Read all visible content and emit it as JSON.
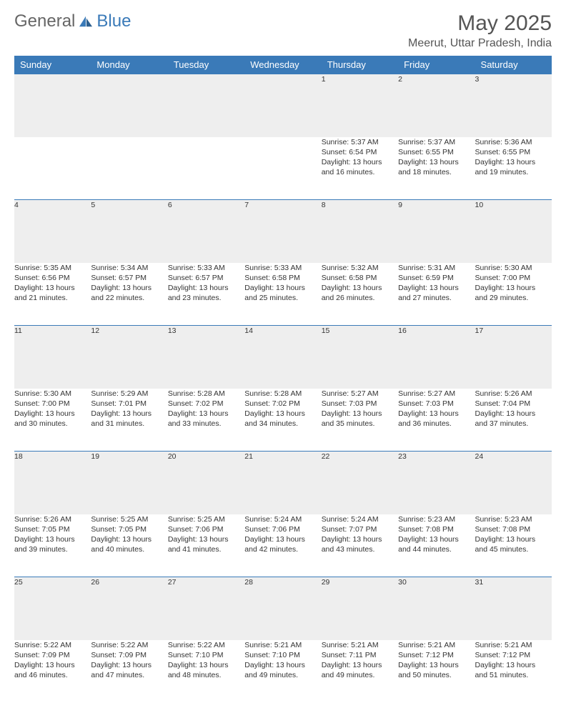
{
  "logo": {
    "general": "General",
    "blue": "Blue"
  },
  "title": "May 2025",
  "location": "Meerut, Uttar Pradesh, India",
  "colors": {
    "header_bg": "#3a7ab8",
    "daynum_bg": "#eeeeee",
    "border": "#3a7ab8",
    "text": "#333333"
  },
  "weekdays": [
    "Sunday",
    "Monday",
    "Tuesday",
    "Wednesday",
    "Thursday",
    "Friday",
    "Saturday"
  ],
  "weeks": [
    [
      null,
      null,
      null,
      null,
      {
        "d": "1",
        "sr": "Sunrise: 5:37 AM",
        "ss": "Sunset: 6:54 PM",
        "dl1": "Daylight: 13 hours",
        "dl2": "and 16 minutes."
      },
      {
        "d": "2",
        "sr": "Sunrise: 5:37 AM",
        "ss": "Sunset: 6:55 PM",
        "dl1": "Daylight: 13 hours",
        "dl2": "and 18 minutes."
      },
      {
        "d": "3",
        "sr": "Sunrise: 5:36 AM",
        "ss": "Sunset: 6:55 PM",
        "dl1": "Daylight: 13 hours",
        "dl2": "and 19 minutes."
      }
    ],
    [
      {
        "d": "4",
        "sr": "Sunrise: 5:35 AM",
        "ss": "Sunset: 6:56 PM",
        "dl1": "Daylight: 13 hours",
        "dl2": "and 21 minutes."
      },
      {
        "d": "5",
        "sr": "Sunrise: 5:34 AM",
        "ss": "Sunset: 6:57 PM",
        "dl1": "Daylight: 13 hours",
        "dl2": "and 22 minutes."
      },
      {
        "d": "6",
        "sr": "Sunrise: 5:33 AM",
        "ss": "Sunset: 6:57 PM",
        "dl1": "Daylight: 13 hours",
        "dl2": "and 23 minutes."
      },
      {
        "d": "7",
        "sr": "Sunrise: 5:33 AM",
        "ss": "Sunset: 6:58 PM",
        "dl1": "Daylight: 13 hours",
        "dl2": "and 25 minutes."
      },
      {
        "d": "8",
        "sr": "Sunrise: 5:32 AM",
        "ss": "Sunset: 6:58 PM",
        "dl1": "Daylight: 13 hours",
        "dl2": "and 26 minutes."
      },
      {
        "d": "9",
        "sr": "Sunrise: 5:31 AM",
        "ss": "Sunset: 6:59 PM",
        "dl1": "Daylight: 13 hours",
        "dl2": "and 27 minutes."
      },
      {
        "d": "10",
        "sr": "Sunrise: 5:30 AM",
        "ss": "Sunset: 7:00 PM",
        "dl1": "Daylight: 13 hours",
        "dl2": "and 29 minutes."
      }
    ],
    [
      {
        "d": "11",
        "sr": "Sunrise: 5:30 AM",
        "ss": "Sunset: 7:00 PM",
        "dl1": "Daylight: 13 hours",
        "dl2": "and 30 minutes."
      },
      {
        "d": "12",
        "sr": "Sunrise: 5:29 AM",
        "ss": "Sunset: 7:01 PM",
        "dl1": "Daylight: 13 hours",
        "dl2": "and 31 minutes."
      },
      {
        "d": "13",
        "sr": "Sunrise: 5:28 AM",
        "ss": "Sunset: 7:02 PM",
        "dl1": "Daylight: 13 hours",
        "dl2": "and 33 minutes."
      },
      {
        "d": "14",
        "sr": "Sunrise: 5:28 AM",
        "ss": "Sunset: 7:02 PM",
        "dl1": "Daylight: 13 hours",
        "dl2": "and 34 minutes."
      },
      {
        "d": "15",
        "sr": "Sunrise: 5:27 AM",
        "ss": "Sunset: 7:03 PM",
        "dl1": "Daylight: 13 hours",
        "dl2": "and 35 minutes."
      },
      {
        "d": "16",
        "sr": "Sunrise: 5:27 AM",
        "ss": "Sunset: 7:03 PM",
        "dl1": "Daylight: 13 hours",
        "dl2": "and 36 minutes."
      },
      {
        "d": "17",
        "sr": "Sunrise: 5:26 AM",
        "ss": "Sunset: 7:04 PM",
        "dl1": "Daylight: 13 hours",
        "dl2": "and 37 minutes."
      }
    ],
    [
      {
        "d": "18",
        "sr": "Sunrise: 5:26 AM",
        "ss": "Sunset: 7:05 PM",
        "dl1": "Daylight: 13 hours",
        "dl2": "and 39 minutes."
      },
      {
        "d": "19",
        "sr": "Sunrise: 5:25 AM",
        "ss": "Sunset: 7:05 PM",
        "dl1": "Daylight: 13 hours",
        "dl2": "and 40 minutes."
      },
      {
        "d": "20",
        "sr": "Sunrise: 5:25 AM",
        "ss": "Sunset: 7:06 PM",
        "dl1": "Daylight: 13 hours",
        "dl2": "and 41 minutes."
      },
      {
        "d": "21",
        "sr": "Sunrise: 5:24 AM",
        "ss": "Sunset: 7:06 PM",
        "dl1": "Daylight: 13 hours",
        "dl2": "and 42 minutes."
      },
      {
        "d": "22",
        "sr": "Sunrise: 5:24 AM",
        "ss": "Sunset: 7:07 PM",
        "dl1": "Daylight: 13 hours",
        "dl2": "and 43 minutes."
      },
      {
        "d": "23",
        "sr": "Sunrise: 5:23 AM",
        "ss": "Sunset: 7:08 PM",
        "dl1": "Daylight: 13 hours",
        "dl2": "and 44 minutes."
      },
      {
        "d": "24",
        "sr": "Sunrise: 5:23 AM",
        "ss": "Sunset: 7:08 PM",
        "dl1": "Daylight: 13 hours",
        "dl2": "and 45 minutes."
      }
    ],
    [
      {
        "d": "25",
        "sr": "Sunrise: 5:22 AM",
        "ss": "Sunset: 7:09 PM",
        "dl1": "Daylight: 13 hours",
        "dl2": "and 46 minutes."
      },
      {
        "d": "26",
        "sr": "Sunrise: 5:22 AM",
        "ss": "Sunset: 7:09 PM",
        "dl1": "Daylight: 13 hours",
        "dl2": "and 47 minutes."
      },
      {
        "d": "27",
        "sr": "Sunrise: 5:22 AM",
        "ss": "Sunset: 7:10 PM",
        "dl1": "Daylight: 13 hours",
        "dl2": "and 48 minutes."
      },
      {
        "d": "28",
        "sr": "Sunrise: 5:21 AM",
        "ss": "Sunset: 7:10 PM",
        "dl1": "Daylight: 13 hours",
        "dl2": "and 49 minutes."
      },
      {
        "d": "29",
        "sr": "Sunrise: 5:21 AM",
        "ss": "Sunset: 7:11 PM",
        "dl1": "Daylight: 13 hours",
        "dl2": "and 49 minutes."
      },
      {
        "d": "30",
        "sr": "Sunrise: 5:21 AM",
        "ss": "Sunset: 7:12 PM",
        "dl1": "Daylight: 13 hours",
        "dl2": "and 50 minutes."
      },
      {
        "d": "31",
        "sr": "Sunrise: 5:21 AM",
        "ss": "Sunset: 7:12 PM",
        "dl1": "Daylight: 13 hours",
        "dl2": "and 51 minutes."
      }
    ]
  ]
}
